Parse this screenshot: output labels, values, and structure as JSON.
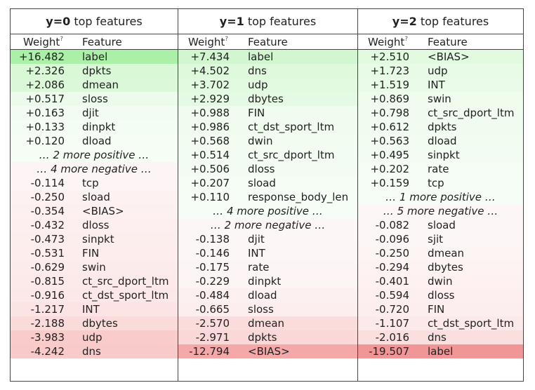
{
  "columns": [
    {
      "title_label": "y=0",
      "title_suffix": " top features",
      "weight_header": "Weight",
      "weight_header_mark": "?",
      "feature_header": "Feature",
      "rows": [
        {
          "type": "pos",
          "weight": "+16.482",
          "feature": "label",
          "bg": "#aaf0a6"
        },
        {
          "type": "pos",
          "weight": "+2.326",
          "feature": "dpkts",
          "bg": "#d8f8d6"
        },
        {
          "type": "pos",
          "weight": "+2.086",
          "feature": "dmean",
          "bg": "#dbf8d9"
        },
        {
          "type": "pos",
          "weight": "+0.517",
          "feature": "sloss",
          "bg": "#ecfbeb"
        },
        {
          "type": "pos",
          "weight": "+0.163",
          "feature": "djit",
          "bg": "#f3fcf3"
        },
        {
          "type": "pos",
          "weight": "+0.133",
          "feature": "dinpkt",
          "bg": "#f4fdf4"
        },
        {
          "type": "pos",
          "weight": "+0.120",
          "feature": "dload",
          "bg": "#f5fdf5"
        },
        {
          "type": "more",
          "text": "… 2 more positive …",
          "bg": "#f5fdf5"
        },
        {
          "type": "more",
          "text": "… 4 more negative …",
          "bg": "#fdf5f5"
        },
        {
          "type": "neg",
          "weight": "-0.114",
          "feature": "tcp",
          "bg": "#fdf5f5"
        },
        {
          "type": "neg",
          "weight": "-0.250",
          "feature": "sload",
          "bg": "#fdf1f1"
        },
        {
          "type": "neg",
          "weight": "-0.354",
          "feature": "<BIAS>",
          "bg": "#fdf0f0"
        },
        {
          "type": "neg",
          "weight": "-0.432",
          "feature": "dloss",
          "bg": "#fdefef"
        },
        {
          "type": "neg",
          "weight": "-0.473",
          "feature": "sinpkt",
          "bg": "#fdeeee"
        },
        {
          "type": "neg",
          "weight": "-0.531",
          "feature": "FIN",
          "bg": "#fdeded"
        },
        {
          "type": "neg",
          "weight": "-0.629",
          "feature": "swin",
          "bg": "#fcebeb"
        },
        {
          "type": "neg",
          "weight": "-0.815",
          "feature": "ct_src_dport_ltm",
          "bg": "#fce9e9"
        },
        {
          "type": "neg",
          "weight": "-0.916",
          "feature": "ct_dst_sport_ltm",
          "bg": "#fce8e8"
        },
        {
          "type": "neg",
          "weight": "-1.217",
          "feature": "INT",
          "bg": "#fce4e4"
        },
        {
          "type": "neg",
          "weight": "-2.188",
          "feature": "dbytes",
          "bg": "#fbdada"
        },
        {
          "type": "neg",
          "weight": "-3.983",
          "feature": "udp",
          "bg": "#f9cbcb"
        },
        {
          "type": "neg",
          "weight": "-4.242",
          "feature": "dns",
          "bg": "#f9caca"
        }
      ]
    },
    {
      "title_label": "y=1",
      "title_suffix": " top features",
      "weight_header": "Weight",
      "weight_header_mark": "?",
      "feature_header": "Feature",
      "rows": [
        {
          "type": "pos",
          "weight": "+7.434",
          "feature": "label",
          "bg": "#d2f7d0"
        },
        {
          "type": "pos",
          "weight": "+4.502",
          "feature": "dns",
          "bg": "#def9dc"
        },
        {
          "type": "pos",
          "weight": "+3.702",
          "feature": "udp",
          "bg": "#e2fae0"
        },
        {
          "type": "pos",
          "weight": "+2.929",
          "feature": "dbytes",
          "bg": "#e5fae4"
        },
        {
          "type": "pos",
          "weight": "+0.988",
          "feature": "FIN",
          "bg": "#effcee"
        },
        {
          "type": "pos",
          "weight": "+0.986",
          "feature": "ct_dst_sport_ltm",
          "bg": "#effcee"
        },
        {
          "type": "pos",
          "weight": "+0.568",
          "feature": "dwin",
          "bg": "#f2fcf1"
        },
        {
          "type": "pos",
          "weight": "+0.514",
          "feature": "ct_src_dport_ltm",
          "bg": "#f2fcf2"
        },
        {
          "type": "pos",
          "weight": "+0.506",
          "feature": "dloss",
          "bg": "#f2fcf2"
        },
        {
          "type": "pos",
          "weight": "+0.207",
          "feature": "sload",
          "bg": "#f5fdf5"
        },
        {
          "type": "pos",
          "weight": "+0.110",
          "feature": "response_body_len",
          "bg": "#f6fdf6"
        },
        {
          "type": "more",
          "text": "… 4 more positive …",
          "bg": "#f6fdf6"
        },
        {
          "type": "more",
          "text": "… 2 more negative …",
          "bg": "#fdf6f6"
        },
        {
          "type": "neg",
          "weight": "-0.138",
          "feature": "djit",
          "bg": "#fdf6f6"
        },
        {
          "type": "neg",
          "weight": "-0.146",
          "feature": "INT",
          "bg": "#fdf6f6"
        },
        {
          "type": "neg",
          "weight": "-0.175",
          "feature": "rate",
          "bg": "#fdf5f5"
        },
        {
          "type": "neg",
          "weight": "-0.229",
          "feature": "dinpkt",
          "bg": "#fdf4f4"
        },
        {
          "type": "neg",
          "weight": "-0.484",
          "feature": "dload",
          "bg": "#fdf0f0"
        },
        {
          "type": "neg",
          "weight": "-0.665",
          "feature": "sloss",
          "bg": "#fceeee"
        },
        {
          "type": "neg",
          "weight": "-2.570",
          "feature": "dmean",
          "bg": "#fadcdc"
        },
        {
          "type": "neg",
          "weight": "-2.971",
          "feature": "dpkts",
          "bg": "#fad8d8"
        },
        {
          "type": "neg",
          "weight": "-12.794",
          "feature": "<BIAS>",
          "bg": "#f4a8a8"
        }
      ]
    },
    {
      "title_label": "y=2",
      "title_suffix": " top features",
      "weight_header": "Weight",
      "weight_header_mark": "?",
      "feature_header": "Feature",
      "rows": [
        {
          "type": "pos",
          "weight": "+2.510",
          "feature": "<BIAS>",
          "bg": "#e2fae0"
        },
        {
          "type": "pos",
          "weight": "+1.723",
          "feature": "udp",
          "bg": "#e8fbe7"
        },
        {
          "type": "pos",
          "weight": "+1.519",
          "feature": "INT",
          "bg": "#eafbe9"
        },
        {
          "type": "pos",
          "weight": "+0.869",
          "feature": "swin",
          "bg": "#effcee"
        },
        {
          "type": "pos",
          "weight": "+0.798",
          "feature": "ct_src_dport_ltm",
          "bg": "#f0fcef"
        },
        {
          "type": "pos",
          "weight": "+0.612",
          "feature": "dpkts",
          "bg": "#f1fcf1"
        },
        {
          "type": "pos",
          "weight": "+0.563",
          "feature": "dload",
          "bg": "#f2fcf1"
        },
        {
          "type": "pos",
          "weight": "+0.495",
          "feature": "sinpkt",
          "bg": "#f2fcf2"
        },
        {
          "type": "pos",
          "weight": "+0.202",
          "feature": "rate",
          "bg": "#f5fdf5"
        },
        {
          "type": "pos",
          "weight": "+0.159",
          "feature": "tcp",
          "bg": "#f6fdf6"
        },
        {
          "type": "more",
          "text": "… 1 more positive …",
          "bg": "#f6fdf6"
        },
        {
          "type": "more",
          "text": "… 5 more negative …",
          "bg": "#fdf6f6"
        },
        {
          "type": "neg",
          "weight": "-0.082",
          "feature": "sload",
          "bg": "#fdf6f6"
        },
        {
          "type": "neg",
          "weight": "-0.096",
          "feature": "sjit",
          "bg": "#fdf6f6"
        },
        {
          "type": "neg",
          "weight": "-0.250",
          "feature": "dmean",
          "bg": "#fdf4f4"
        },
        {
          "type": "neg",
          "weight": "-0.294",
          "feature": "dbytes",
          "bg": "#fdf3f3"
        },
        {
          "type": "neg",
          "weight": "-0.401",
          "feature": "dwin",
          "bg": "#fdf1f1"
        },
        {
          "type": "neg",
          "weight": "-0.594",
          "feature": "dloss",
          "bg": "#fdefef"
        },
        {
          "type": "neg",
          "weight": "-0.720",
          "feature": "FIN",
          "bg": "#fceeee"
        },
        {
          "type": "neg",
          "weight": "-1.107",
          "feature": "ct_dst_sport_ltm",
          "bg": "#fce9e9"
        },
        {
          "type": "neg",
          "weight": "-2.016",
          "feature": "dns",
          "bg": "#fbdfdf"
        },
        {
          "type": "neg",
          "weight": "-19.507",
          "feature": "label",
          "bg": "#f09696"
        }
      ]
    }
  ]
}
